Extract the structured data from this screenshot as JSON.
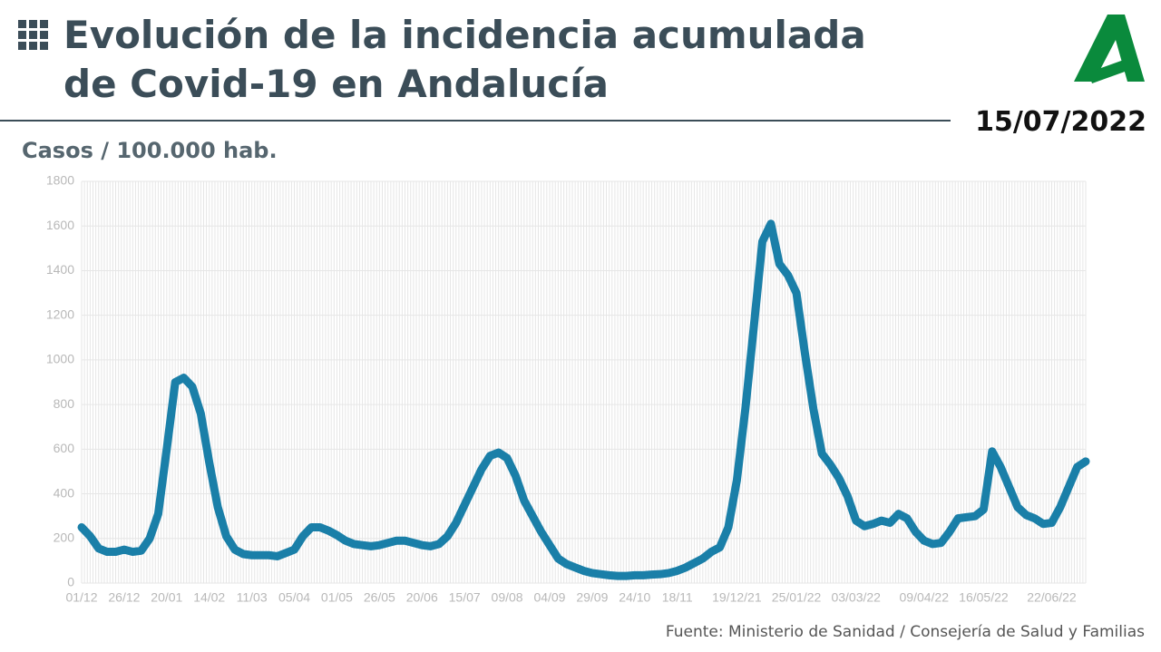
{
  "header": {
    "title_line1": "Evolución de la incidencia acumulada",
    "title_line2": "de Covid-19 en Andalucía",
    "date": "15/07/2022"
  },
  "chart_data": {
    "type": "line",
    "y_label": "Casos / 100.000 hab.",
    "color": "#1a7fa8",
    "grid": true,
    "ylim": [
      0,
      1800
    ],
    "yticks": [
      0,
      200,
      400,
      600,
      800,
      1000,
      1200,
      1400,
      1600,
      1800
    ],
    "categories": [
      "01/12",
      null,
      null,
      null,
      null,
      "26/12",
      null,
      null,
      null,
      null,
      "20/01",
      null,
      null,
      null,
      null,
      "14/02",
      null,
      null,
      null,
      null,
      "11/03",
      null,
      null,
      null,
      null,
      "05/04",
      null,
      null,
      null,
      null,
      "01/05",
      null,
      null,
      null,
      null,
      "26/05",
      null,
      null,
      null,
      null,
      "20/06",
      null,
      null,
      null,
      null,
      "15/07",
      null,
      null,
      null,
      null,
      "09/08",
      null,
      null,
      null,
      null,
      "04/09",
      null,
      null,
      null,
      null,
      "29/09",
      null,
      null,
      null,
      null,
      "24/10",
      null,
      null,
      null,
      null,
      "18/11",
      null,
      null,
      null,
      null,
      null,
      null,
      "19/12/21",
      null,
      null,
      null,
      null,
      null,
      null,
      "25/01/22",
      null,
      null,
      null,
      null,
      null,
      null,
      "03/03/22",
      null,
      null,
      null,
      null,
      null,
      null,
      null,
      "09/04/22",
      null,
      null,
      null,
      null,
      null,
      null,
      "16/05/22",
      null,
      null,
      null,
      null,
      null,
      null,
      null,
      "22/06/22",
      null,
      null,
      null,
      null
    ],
    "values": [
      250,
      210,
      155,
      140,
      140,
      150,
      140,
      145,
      200,
      310,
      600,
      900,
      920,
      880,
      760,
      540,
      340,
      210,
      150,
      130,
      125,
      125,
      125,
      120,
      135,
      150,
      210,
      250,
      250,
      235,
      215,
      190,
      175,
      170,
      165,
      170,
      180,
      190,
      190,
      180,
      170,
      165,
      175,
      210,
      270,
      350,
      430,
      510,
      570,
      585,
      560,
      480,
      370,
      300,
      230,
      170,
      110,
      85,
      70,
      55,
      45,
      40,
      35,
      32,
      32,
      35,
      35,
      38,
      40,
      45,
      55,
      70,
      90,
      110,
      140,
      160,
      250,
      460,
      780,
      1150,
      1530,
      1610,
      1430,
      1380,
      1300,
      1030,
      780,
      580,
      530,
      470,
      390,
      280,
      255,
      265,
      280,
      270,
      310,
      290,
      230,
      190,
      175,
      180,
      230,
      290,
      295,
      300,
      330,
      590,
      520,
      430,
      340,
      305,
      290,
      265,
      270,
      340,
      430,
      520,
      545
    ],
    "source": "Fuente: Ministerio de Sanidad / Consejería de Salud y Familias"
  }
}
